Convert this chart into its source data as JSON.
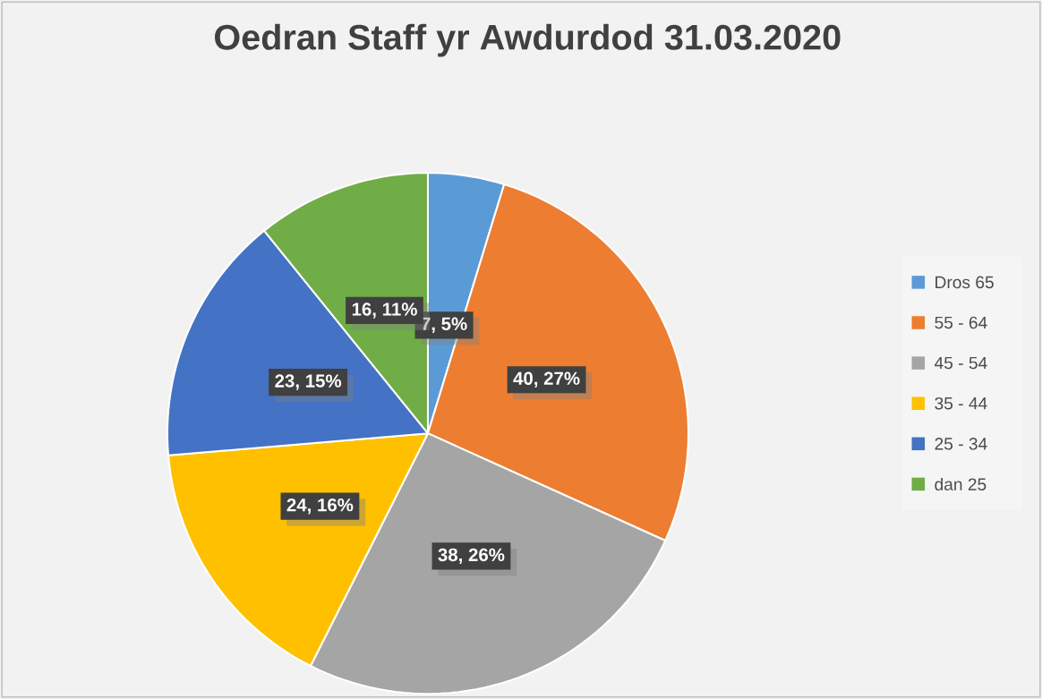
{
  "chart_data": {
    "type": "pie",
    "title": "Oedran Staff yr Awdurdod 31.03.2020",
    "categories": [
      "Dros 65",
      "55 - 64",
      "45 - 54",
      "35 - 44",
      "25 - 34",
      "dan 25"
    ],
    "values": [
      7,
      40,
      38,
      24,
      23,
      16
    ],
    "value_labels": [
      "7, 5%",
      "40, 27%",
      "38, 26%",
      "24, 16%",
      "23, 15%",
      "16, 11%"
    ],
    "colors": [
      "#5b9bd5",
      "#ed7d31",
      "#a5a5a5",
      "#ffc000",
      "#4472c4",
      "#70ad47"
    ],
    "legend": "right"
  }
}
